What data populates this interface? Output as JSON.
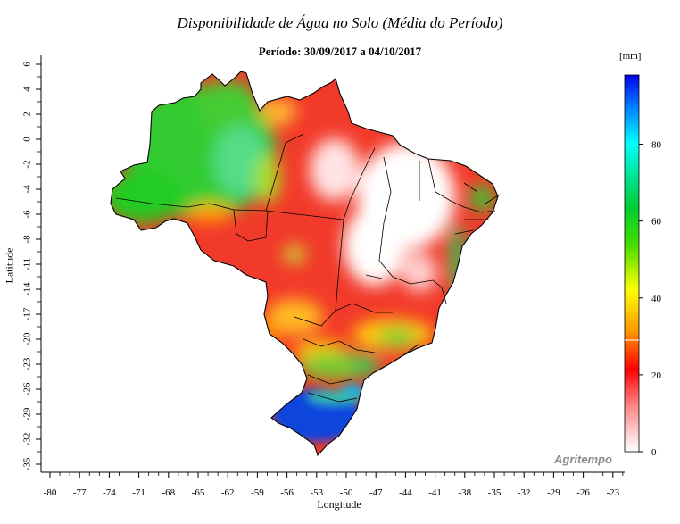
{
  "title": "Disponibilidade de Água no Solo (Média do Período)",
  "subtitle": "Período: 30/09/2017 a 04/10/2017",
  "x_axis": {
    "label": "Longitude",
    "ticks": [
      "-80",
      "-77",
      "-74",
      "-71",
      "-68",
      "-65",
      "-62",
      "-59",
      "-56",
      "-53",
      "-50",
      "-47",
      "-44",
      "-41",
      "-38",
      "-35",
      "-32",
      "-29",
      "-26",
      "-23"
    ]
  },
  "y_axis": {
    "label": "Latitude",
    "ticks": [
      "6",
      "4",
      "2",
      "0",
      "-2",
      "-4",
      "-6",
      "-8",
      "-11",
      "-14",
      "-17",
      "-20",
      "-23",
      "-26",
      "-29",
      "-32",
      "-35"
    ]
  },
  "colorbar": {
    "unit": "[mm]",
    "ticks": [
      "80",
      "60",
      "40",
      "20",
      "0"
    ],
    "range": [
      0,
      98
    ],
    "colors": [
      "#ffffff",
      "#ff0000",
      "#ff9900",
      "#ffff00",
      "#00cc00",
      "#00ffff",
      "#0000ff"
    ]
  },
  "brand": "Agritempo",
  "colors": {
    "very_low": "#ffffff",
    "low": "#ee1111",
    "medium": "#ffaa00",
    "high": "#22cc22",
    "very_high": "#1133dd"
  }
}
